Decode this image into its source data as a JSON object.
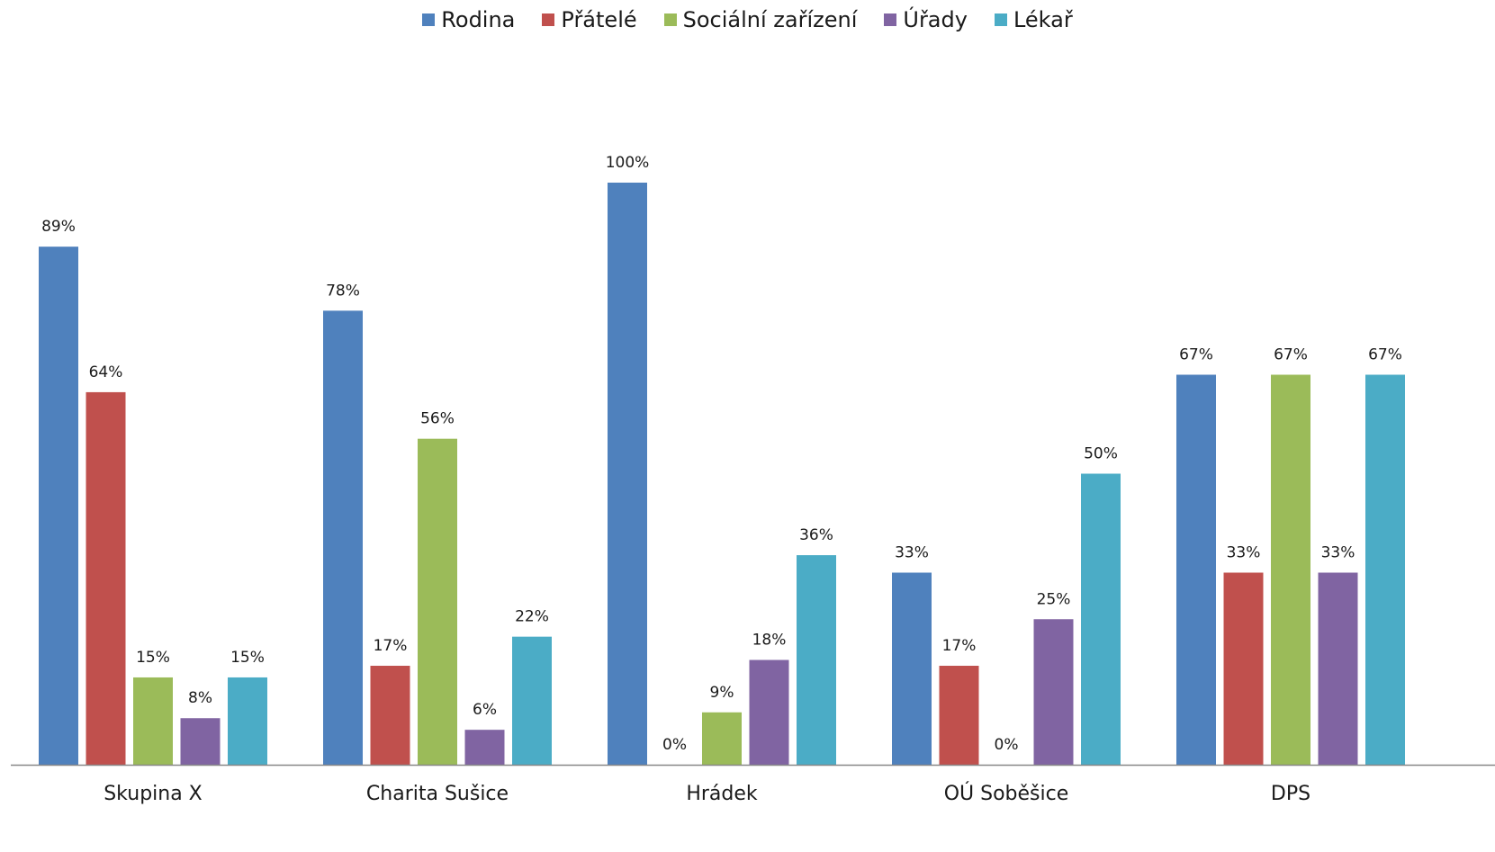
{
  "chart_data": {
    "type": "bar",
    "categories": [
      "Skupina X",
      "Charita Sušice",
      "Hrádek",
      "OÚ Soběšice",
      "DPS"
    ],
    "series": [
      {
        "name": "Rodina",
        "color": "#4F81BD",
        "values": [
          89,
          78,
          100,
          33,
          67
        ],
        "labels": [
          "89%",
          "78%",
          "100%",
          "33%",
          "67%"
        ]
      },
      {
        "name": "Přátelé",
        "color": "#C0504D",
        "values": [
          64,
          17,
          0,
          17,
          33
        ],
        "labels": [
          "64%",
          "17%",
          "0%",
          "17%",
          "33%"
        ]
      },
      {
        "name": "Sociální zařízení",
        "color": "#9BBB59",
        "values": [
          15,
          56,
          9,
          0,
          67
        ],
        "labels": [
          "15%",
          "56%",
          "9%",
          "0%",
          "67%"
        ]
      },
      {
        "name": "Úřady",
        "color": "#8064A2",
        "values": [
          8,
          6,
          18,
          25,
          33
        ],
        "labels": [
          "8%",
          "6%",
          "18%",
          "25%",
          "33%"
        ]
      },
      {
        "name": "Lékař",
        "color": "#4BACC6",
        "values": [
          15,
          22,
          36,
          50,
          67
        ],
        "labels": [
          "15%",
          "22%",
          "36%",
          "50%",
          "67%"
        ]
      }
    ],
    "ylim": [
      0,
      100
    ],
    "grid": false,
    "legend_position": "top"
  }
}
